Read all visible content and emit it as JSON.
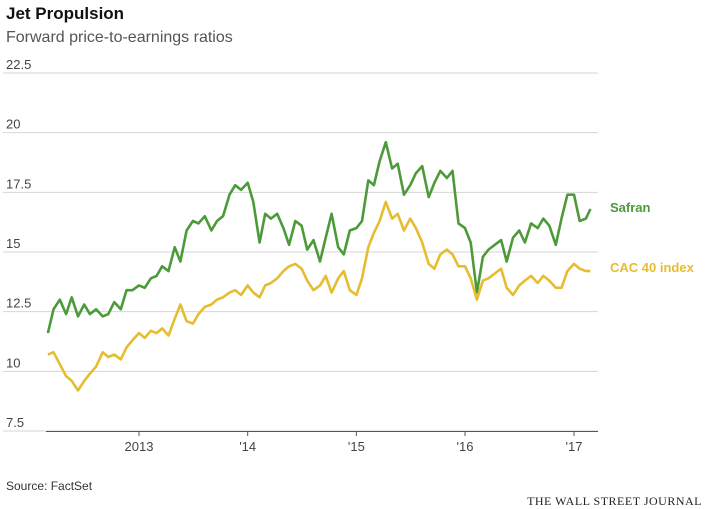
{
  "title": "Jet Propulsion",
  "subtitle": "Forward price-to-earnings ratios",
  "source": "Source: FactSet",
  "brand": "THE WALL STREET JOURNAL",
  "chart_data": {
    "type": "line",
    "title": "Jet Propulsion",
    "subtitle": "Forward price-to-earnings ratios",
    "xlabel": "",
    "ylabel": "",
    "ylim": [
      7.5,
      22.5
    ],
    "xlim": [
      "2012-03-01",
      "2017-03-01"
    ],
    "yticks": [
      22.5,
      20,
      17.5,
      15,
      12.5,
      10,
      7.5
    ],
    "xticks": [
      {
        "label": "2013",
        "date": "2013-01-01"
      },
      {
        "label": "'14",
        "date": "2014-01-01"
      },
      {
        "label": "'15",
        "date": "2015-01-01"
      },
      {
        "label": "'16",
        "date": "2016-01-01"
      },
      {
        "label": "'17",
        "date": "2017-01-01"
      }
    ],
    "grid": "horizontal",
    "legend": "direct labels at right end of lines",
    "series": [
      {
        "name": "Safran",
        "color": "#4c9a3a",
        "points": [
          [
            "2012-03-01",
            11.6
          ],
          [
            "2012-03-20",
            12.6
          ],
          [
            "2012-04-10",
            13.0
          ],
          [
            "2012-05-01",
            12.4
          ],
          [
            "2012-05-20",
            13.1
          ],
          [
            "2012-06-10",
            12.3
          ],
          [
            "2012-07-01",
            12.8
          ],
          [
            "2012-07-20",
            12.4
          ],
          [
            "2012-08-10",
            12.6
          ],
          [
            "2012-09-01",
            12.3
          ],
          [
            "2012-09-20",
            12.4
          ],
          [
            "2012-10-10",
            12.9
          ],
          [
            "2012-11-01",
            12.6
          ],
          [
            "2012-11-20",
            13.4
          ],
          [
            "2012-12-10",
            13.4
          ],
          [
            "2013-01-01",
            13.6
          ],
          [
            "2013-01-20",
            13.5
          ],
          [
            "2013-02-10",
            13.9
          ],
          [
            "2013-03-01",
            14.0
          ],
          [
            "2013-03-20",
            14.4
          ],
          [
            "2013-04-10",
            14.2
          ],
          [
            "2013-05-01",
            15.2
          ],
          [
            "2013-05-20",
            14.6
          ],
          [
            "2013-06-10",
            15.9
          ],
          [
            "2013-07-01",
            16.3
          ],
          [
            "2013-07-20",
            16.2
          ],
          [
            "2013-08-10",
            16.5
          ],
          [
            "2013-09-01",
            15.9
          ],
          [
            "2013-09-20",
            16.3
          ],
          [
            "2013-10-10",
            16.5
          ],
          [
            "2013-11-01",
            17.4
          ],
          [
            "2013-11-20",
            17.8
          ],
          [
            "2013-12-10",
            17.6
          ],
          [
            "2014-01-01",
            17.9
          ],
          [
            "2014-01-20",
            17.1
          ],
          [
            "2014-02-10",
            15.4
          ],
          [
            "2014-03-01",
            16.6
          ],
          [
            "2014-03-20",
            16.4
          ],
          [
            "2014-04-10",
            16.6
          ],
          [
            "2014-05-01",
            16.0
          ],
          [
            "2014-05-20",
            15.3
          ],
          [
            "2014-06-10",
            16.3
          ],
          [
            "2014-07-01",
            16.1
          ],
          [
            "2014-07-20",
            15.1
          ],
          [
            "2014-08-10",
            15.5
          ],
          [
            "2014-09-01",
            14.6
          ],
          [
            "2014-09-20",
            15.6
          ],
          [
            "2014-10-10",
            16.6
          ],
          [
            "2014-11-01",
            15.2
          ],
          [
            "2014-11-20",
            14.9
          ],
          [
            "2014-12-10",
            15.9
          ],
          [
            "2015-01-01",
            16.0
          ],
          [
            "2015-01-20",
            16.3
          ],
          [
            "2015-02-10",
            18.0
          ],
          [
            "2015-03-01",
            17.8
          ],
          [
            "2015-03-20",
            18.8
          ],
          [
            "2015-04-10",
            19.6
          ],
          [
            "2015-05-01",
            18.5
          ],
          [
            "2015-05-20",
            18.7
          ],
          [
            "2015-06-10",
            17.4
          ],
          [
            "2015-07-01",
            17.8
          ],
          [
            "2015-07-20",
            18.3
          ],
          [
            "2015-08-10",
            18.6
          ],
          [
            "2015-09-01",
            17.3
          ],
          [
            "2015-09-20",
            17.9
          ],
          [
            "2015-10-10",
            18.4
          ],
          [
            "2015-11-01",
            18.1
          ],
          [
            "2015-11-20",
            18.4
          ],
          [
            "2015-12-10",
            16.2
          ],
          [
            "2016-01-01",
            16.0
          ],
          [
            "2016-01-20",
            15.4
          ],
          [
            "2016-02-10",
            13.3
          ],
          [
            "2016-03-01",
            14.8
          ],
          [
            "2016-03-20",
            15.1
          ],
          [
            "2016-04-10",
            15.3
          ],
          [
            "2016-05-01",
            15.5
          ],
          [
            "2016-05-20",
            14.6
          ],
          [
            "2016-06-10",
            15.6
          ],
          [
            "2016-07-01",
            15.9
          ],
          [
            "2016-07-20",
            15.4
          ],
          [
            "2016-08-10",
            16.2
          ],
          [
            "2016-09-01",
            16.0
          ],
          [
            "2016-09-20",
            16.4
          ],
          [
            "2016-10-10",
            16.1
          ],
          [
            "2016-11-01",
            15.3
          ],
          [
            "2016-11-20",
            16.4
          ],
          [
            "2016-12-10",
            17.4
          ],
          [
            "2017-01-01",
            17.4
          ],
          [
            "2017-01-20",
            16.3
          ],
          [
            "2017-02-10",
            16.4
          ],
          [
            "2017-02-25",
            16.8
          ]
        ]
      },
      {
        "name": "CAC 40 index",
        "color": "#e6bd2e",
        "points": [
          [
            "2012-03-01",
            10.7
          ],
          [
            "2012-03-20",
            10.8
          ],
          [
            "2012-04-10",
            10.3
          ],
          [
            "2012-05-01",
            9.8
          ],
          [
            "2012-05-20",
            9.6
          ],
          [
            "2012-06-10",
            9.2
          ],
          [
            "2012-07-01",
            9.6
          ],
          [
            "2012-07-20",
            9.9
          ],
          [
            "2012-08-10",
            10.2
          ],
          [
            "2012-09-01",
            10.8
          ],
          [
            "2012-09-20",
            10.6
          ],
          [
            "2012-10-10",
            10.7
          ],
          [
            "2012-11-01",
            10.5
          ],
          [
            "2012-11-20",
            11.0
          ],
          [
            "2012-12-10",
            11.3
          ],
          [
            "2013-01-01",
            11.6
          ],
          [
            "2013-01-20",
            11.4
          ],
          [
            "2013-02-10",
            11.7
          ],
          [
            "2013-03-01",
            11.6
          ],
          [
            "2013-03-20",
            11.8
          ],
          [
            "2013-04-10",
            11.5
          ],
          [
            "2013-05-01",
            12.2
          ],
          [
            "2013-05-20",
            12.8
          ],
          [
            "2013-06-10",
            12.1
          ],
          [
            "2013-07-01",
            12.0
          ],
          [
            "2013-07-20",
            12.4
          ],
          [
            "2013-08-10",
            12.7
          ],
          [
            "2013-09-01",
            12.8
          ],
          [
            "2013-09-20",
            13.0
          ],
          [
            "2013-10-10",
            13.1
          ],
          [
            "2013-11-01",
            13.3
          ],
          [
            "2013-11-20",
            13.4
          ],
          [
            "2013-12-10",
            13.2
          ],
          [
            "2014-01-01",
            13.6
          ],
          [
            "2014-01-20",
            13.3
          ],
          [
            "2014-02-10",
            13.1
          ],
          [
            "2014-03-01",
            13.6
          ],
          [
            "2014-03-20",
            13.7
          ],
          [
            "2014-04-10",
            13.9
          ],
          [
            "2014-05-01",
            14.2
          ],
          [
            "2014-05-20",
            14.4
          ],
          [
            "2014-06-10",
            14.5
          ],
          [
            "2014-07-01",
            14.3
          ],
          [
            "2014-07-20",
            13.8
          ],
          [
            "2014-08-10",
            13.4
          ],
          [
            "2014-09-01",
            13.6
          ],
          [
            "2014-09-20",
            14.0
          ],
          [
            "2014-10-10",
            13.3
          ],
          [
            "2014-11-01",
            13.9
          ],
          [
            "2014-11-20",
            14.2
          ],
          [
            "2014-12-10",
            13.4
          ],
          [
            "2015-01-01",
            13.2
          ],
          [
            "2015-01-20",
            13.9
          ],
          [
            "2015-02-10",
            15.2
          ],
          [
            "2015-03-01",
            15.8
          ],
          [
            "2015-03-20",
            16.3
          ],
          [
            "2015-04-10",
            17.1
          ],
          [
            "2015-05-01",
            16.4
          ],
          [
            "2015-05-20",
            16.6
          ],
          [
            "2015-06-10",
            15.9
          ],
          [
            "2015-07-01",
            16.4
          ],
          [
            "2015-07-20",
            16.0
          ],
          [
            "2015-08-10",
            15.4
          ],
          [
            "2015-09-01",
            14.5
          ],
          [
            "2015-09-20",
            14.3
          ],
          [
            "2015-10-10",
            14.9
          ],
          [
            "2015-11-01",
            15.1
          ],
          [
            "2015-11-20",
            14.9
          ],
          [
            "2015-12-10",
            14.4
          ],
          [
            "2016-01-01",
            14.4
          ],
          [
            "2016-01-20",
            13.9
          ],
          [
            "2016-02-10",
            13.0
          ],
          [
            "2016-03-01",
            13.8
          ],
          [
            "2016-03-20",
            13.9
          ],
          [
            "2016-04-10",
            14.1
          ],
          [
            "2016-05-01",
            14.3
          ],
          [
            "2016-05-20",
            13.5
          ],
          [
            "2016-06-10",
            13.2
          ],
          [
            "2016-07-01",
            13.6
          ],
          [
            "2016-07-20",
            13.8
          ],
          [
            "2016-08-10",
            14.0
          ],
          [
            "2016-09-01",
            13.7
          ],
          [
            "2016-09-20",
            14.0
          ],
          [
            "2016-10-10",
            13.8
          ],
          [
            "2016-11-01",
            13.5
          ],
          [
            "2016-11-20",
            13.5
          ],
          [
            "2016-12-10",
            14.2
          ],
          [
            "2017-01-01",
            14.5
          ],
          [
            "2017-01-20",
            14.3
          ],
          [
            "2017-02-10",
            14.2
          ],
          [
            "2017-02-25",
            14.2
          ]
        ]
      }
    ]
  }
}
